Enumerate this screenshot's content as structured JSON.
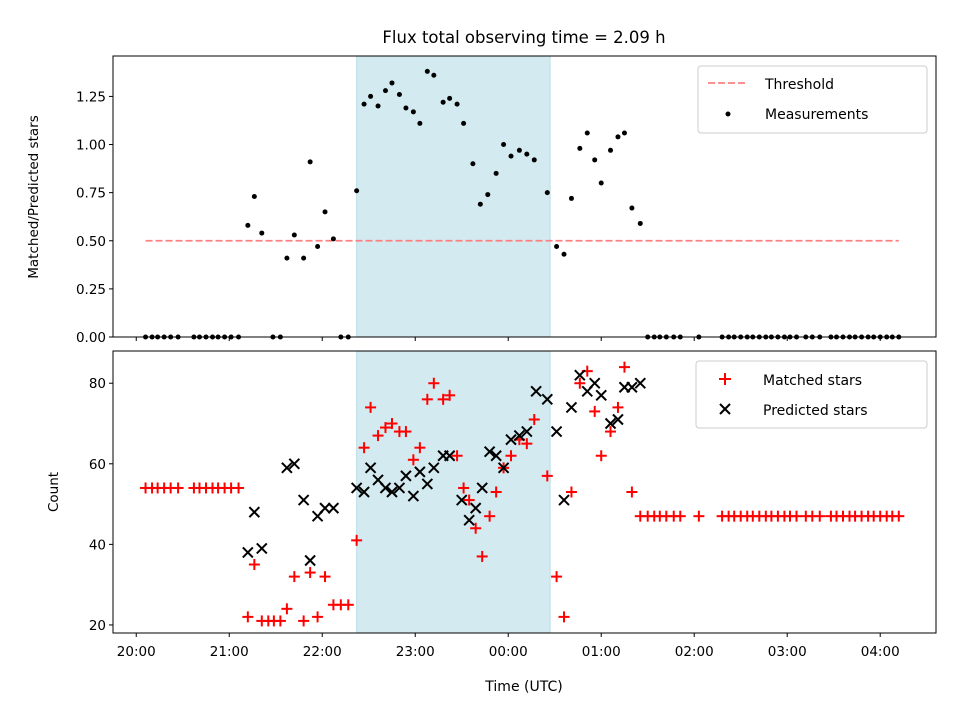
{
  "figure": {
    "title": "Flux total observing time = 2.09 h",
    "xlabel": "Time (UTC)",
    "xticks": [
      {
        "t": 20.0,
        "label": "20:00"
      },
      {
        "t": 21.0,
        "label": "21:00"
      },
      {
        "t": 22.0,
        "label": "22:00"
      },
      {
        "t": 23.0,
        "label": "23:00"
      },
      {
        "t": 24.0,
        "label": "00:00"
      },
      {
        "t": 25.0,
        "label": "01:00"
      },
      {
        "t": 26.0,
        "label": "02:00"
      },
      {
        "t": 27.0,
        "label": "03:00"
      },
      {
        "t": 28.0,
        "label": "04:00"
      }
    ],
    "xlim": [
      19.75,
      28.6
    ],
    "observing_window": {
      "start": 22.37,
      "end": 24.45,
      "color": "#d3eaf0"
    }
  },
  "chart_data": [
    {
      "type": "scatter",
      "ylabel": "Matched/Predicted stars",
      "ylim": [
        0,
        1.46
      ],
      "yticks": [
        "0.00",
        "0.25",
        "0.50",
        "0.75",
        "1.00",
        "1.25"
      ],
      "legend": {
        "position": "top-right",
        "entries": [
          "Threshold",
          "Measurements"
        ]
      },
      "threshold": {
        "name": "Threshold",
        "value": 0.5,
        "x_range": [
          20.1,
          28.2
        ],
        "color": "#ff8080",
        "style": "dashed"
      },
      "series": [
        {
          "name": "Measurements",
          "color": "#000000",
          "points": [
            [
              20.1,
              0
            ],
            [
              20.17,
              0
            ],
            [
              20.23,
              0
            ],
            [
              20.3,
              0
            ],
            [
              20.37,
              0
            ],
            [
              20.45,
              0
            ],
            [
              20.62,
              0
            ],
            [
              20.68,
              0
            ],
            [
              20.75,
              0
            ],
            [
              20.82,
              0
            ],
            [
              20.88,
              0
            ],
            [
              20.95,
              0
            ],
            [
              21.02,
              0
            ],
            [
              21.1,
              0
            ],
            [
              21.2,
              0.58
            ],
            [
              21.27,
              0.73
            ],
            [
              21.35,
              0.54
            ],
            [
              21.47,
              0
            ],
            [
              21.55,
              0
            ],
            [
              21.62,
              0.41
            ],
            [
              21.7,
              0.53
            ],
            [
              21.8,
              0.41
            ],
            [
              21.87,
              0.91
            ],
            [
              21.95,
              0.47
            ],
            [
              22.03,
              0.65
            ],
            [
              22.12,
              0.51
            ],
            [
              22.2,
              0
            ],
            [
              22.28,
              0
            ],
            [
              22.37,
              0.76
            ],
            [
              22.45,
              1.21
            ],
            [
              22.52,
              1.25
            ],
            [
              22.6,
              1.2
            ],
            [
              22.68,
              1.28
            ],
            [
              22.75,
              1.32
            ],
            [
              22.83,
              1.26
            ],
            [
              22.9,
              1.19
            ],
            [
              22.98,
              1.17
            ],
            [
              23.05,
              1.11
            ],
            [
              23.13,
              1.38
            ],
            [
              23.2,
              1.36
            ],
            [
              23.3,
              1.22
            ],
            [
              23.37,
              1.24
            ],
            [
              23.45,
              1.21
            ],
            [
              23.52,
              1.11
            ],
            [
              23.62,
              0.9
            ],
            [
              23.7,
              0.69
            ],
            [
              23.78,
              0.74
            ],
            [
              23.87,
              0.85
            ],
            [
              23.95,
              1.0
            ],
            [
              24.03,
              0.94
            ],
            [
              24.12,
              0.97
            ],
            [
              24.2,
              0.95
            ],
            [
              24.28,
              0.92
            ],
            [
              24.42,
              0.75
            ],
            [
              24.52,
              0.47
            ],
            [
              24.6,
              0.43
            ],
            [
              24.68,
              0.72
            ],
            [
              24.77,
              0.98
            ],
            [
              24.85,
              1.06
            ],
            [
              24.93,
              0.92
            ],
            [
              25.0,
              0.8
            ],
            [
              25.1,
              0.97
            ],
            [
              25.18,
              1.04
            ],
            [
              25.25,
              1.06
            ],
            [
              25.33,
              0.67
            ],
            [
              25.42,
              0.59
            ],
            [
              25.5,
              0
            ],
            [
              25.57,
              0
            ],
            [
              25.63,
              0
            ],
            [
              25.7,
              0
            ],
            [
              25.78,
              0
            ],
            [
              25.85,
              0
            ],
            [
              26.05,
              0
            ],
            [
              26.3,
              0
            ],
            [
              26.37,
              0
            ],
            [
              26.43,
              0
            ],
            [
              26.5,
              0
            ],
            [
              26.57,
              0
            ],
            [
              26.63,
              0
            ],
            [
              26.7,
              0
            ],
            [
              26.77,
              0
            ],
            [
              26.83,
              0
            ],
            [
              26.9,
              0
            ],
            [
              26.97,
              0
            ],
            [
              27.03,
              0
            ],
            [
              27.1,
              0
            ],
            [
              27.2,
              0
            ],
            [
              27.27,
              0
            ],
            [
              27.35,
              0
            ],
            [
              27.47,
              0
            ],
            [
              27.53,
              0
            ],
            [
              27.6,
              0
            ],
            [
              27.67,
              0
            ],
            [
              27.73,
              0
            ],
            [
              27.8,
              0
            ],
            [
              27.87,
              0
            ],
            [
              27.93,
              0
            ],
            [
              28.0,
              0
            ],
            [
              28.07,
              0
            ],
            [
              28.13,
              0
            ],
            [
              28.2,
              0
            ]
          ]
        }
      ]
    },
    {
      "type": "scatter",
      "ylabel": "Count",
      "ylim": [
        18,
        88
      ],
      "yticks": [
        "20",
        "40",
        "60",
        "80"
      ],
      "legend": {
        "position": "top-right",
        "entries": [
          "Matched stars",
          "Predicted stars"
        ]
      },
      "series": [
        {
          "name": "Matched stars",
          "color": "#ff0000",
          "marker": "plus",
          "points": [
            [
              20.1,
              54
            ],
            [
              20.17,
              54
            ],
            [
              20.23,
              54
            ],
            [
              20.3,
              54
            ],
            [
              20.37,
              54
            ],
            [
              20.45,
              54
            ],
            [
              20.62,
              54
            ],
            [
              20.68,
              54
            ],
            [
              20.75,
              54
            ],
            [
              20.82,
              54
            ],
            [
              20.88,
              54
            ],
            [
              20.95,
              54
            ],
            [
              21.02,
              54
            ],
            [
              21.1,
              54
            ],
            [
              21.2,
              22
            ],
            [
              21.27,
              35
            ],
            [
              21.35,
              21
            ],
            [
              21.42,
              21
            ],
            [
              21.48,
              21
            ],
            [
              21.55,
              21
            ],
            [
              21.62,
              24
            ],
            [
              21.7,
              32
            ],
            [
              21.8,
              21
            ],
            [
              21.87,
              33
            ],
            [
              21.95,
              22
            ],
            [
              22.03,
              32
            ],
            [
              22.12,
              25
            ],
            [
              22.2,
              25
            ],
            [
              22.28,
              25
            ],
            [
              22.37,
              41
            ],
            [
              22.45,
              64
            ],
            [
              22.52,
              74
            ],
            [
              22.6,
              67
            ],
            [
              22.68,
              69
            ],
            [
              22.75,
              70
            ],
            [
              22.83,
              68
            ],
            [
              22.9,
              68
            ],
            [
              22.98,
              61
            ],
            [
              23.05,
              64
            ],
            [
              23.13,
              76
            ],
            [
              23.2,
              80
            ],
            [
              23.3,
              76
            ],
            [
              23.37,
              77
            ],
            [
              23.45,
              62
            ],
            [
              23.52,
              54
            ],
            [
              23.58,
              51
            ],
            [
              23.65,
              44
            ],
            [
              23.72,
              37
            ],
            [
              23.8,
              47
            ],
            [
              23.87,
              53
            ],
            [
              23.95,
              59
            ],
            [
              24.03,
              62
            ],
            [
              24.12,
              66
            ],
            [
              24.2,
              65
            ],
            [
              24.28,
              71
            ],
            [
              24.42,
              57
            ],
            [
              24.52,
              32
            ],
            [
              24.6,
              22
            ],
            [
              24.68,
              53
            ],
            [
              24.77,
              80
            ],
            [
              24.85,
              83
            ],
            [
              24.93,
              73
            ],
            [
              25.0,
              62
            ],
            [
              25.1,
              68
            ],
            [
              25.18,
              74
            ],
            [
              25.25,
              84
            ],
            [
              25.33,
              53
            ],
            [
              25.42,
              47
            ],
            [
              25.5,
              47
            ],
            [
              25.57,
              47
            ],
            [
              25.63,
              47
            ],
            [
              25.7,
              47
            ],
            [
              25.78,
              47
            ],
            [
              25.85,
              47
            ],
            [
              26.05,
              47
            ],
            [
              26.3,
              47
            ],
            [
              26.37,
              47
            ],
            [
              26.43,
              47
            ],
            [
              26.5,
              47
            ],
            [
              26.57,
              47
            ],
            [
              26.63,
              47
            ],
            [
              26.7,
              47
            ],
            [
              26.77,
              47
            ],
            [
              26.83,
              47
            ],
            [
              26.9,
              47
            ],
            [
              26.97,
              47
            ],
            [
              27.03,
              47
            ],
            [
              27.1,
              47
            ],
            [
              27.2,
              47
            ],
            [
              27.27,
              47
            ],
            [
              27.35,
              47
            ],
            [
              27.47,
              47
            ],
            [
              27.53,
              47
            ],
            [
              27.6,
              47
            ],
            [
              27.67,
              47
            ],
            [
              27.73,
              47
            ],
            [
              27.8,
              47
            ],
            [
              27.87,
              47
            ],
            [
              27.93,
              47
            ],
            [
              28.0,
              47
            ],
            [
              28.07,
              47
            ],
            [
              28.13,
              47
            ],
            [
              28.2,
              47
            ]
          ]
        },
        {
          "name": "Predicted stars",
          "color": "#000000",
          "marker": "x",
          "points": [
            [
              21.2,
              38
            ],
            [
              21.27,
              48
            ],
            [
              21.35,
              39
            ],
            [
              21.62,
              59
            ],
            [
              21.7,
              60
            ],
            [
              21.8,
              51
            ],
            [
              21.87,
              36
            ],
            [
              21.95,
              47
            ],
            [
              22.03,
              49
            ],
            [
              22.12,
              49
            ],
            [
              22.37,
              54
            ],
            [
              22.45,
              53
            ],
            [
              22.52,
              59
            ],
            [
              22.6,
              56
            ],
            [
              22.68,
              54
            ],
            [
              22.75,
              53
            ],
            [
              22.83,
              54
            ],
            [
              22.9,
              57
            ],
            [
              22.98,
              52
            ],
            [
              23.05,
              58
            ],
            [
              23.13,
              55
            ],
            [
              23.2,
              59
            ],
            [
              23.3,
              62
            ],
            [
              23.37,
              62
            ],
            [
              23.5,
              51
            ],
            [
              23.58,
              46
            ],
            [
              23.65,
              49
            ],
            [
              23.72,
              54
            ],
            [
              23.8,
              63
            ],
            [
              23.87,
              62
            ],
            [
              23.95,
              59
            ],
            [
              24.03,
              66
            ],
            [
              24.12,
              67
            ],
            [
              24.2,
              68
            ],
            [
              24.3,
              78
            ],
            [
              24.42,
              76
            ],
            [
              24.52,
              68
            ],
            [
              24.6,
              51
            ],
            [
              24.68,
              74
            ],
            [
              24.77,
              82
            ],
            [
              24.85,
              78
            ],
            [
              24.93,
              80
            ],
            [
              25.0,
              77
            ],
            [
              25.1,
              70
            ],
            [
              25.18,
              71
            ],
            [
              25.25,
              79
            ],
            [
              25.33,
              79
            ],
            [
              25.42,
              80
            ]
          ]
        }
      ]
    }
  ]
}
